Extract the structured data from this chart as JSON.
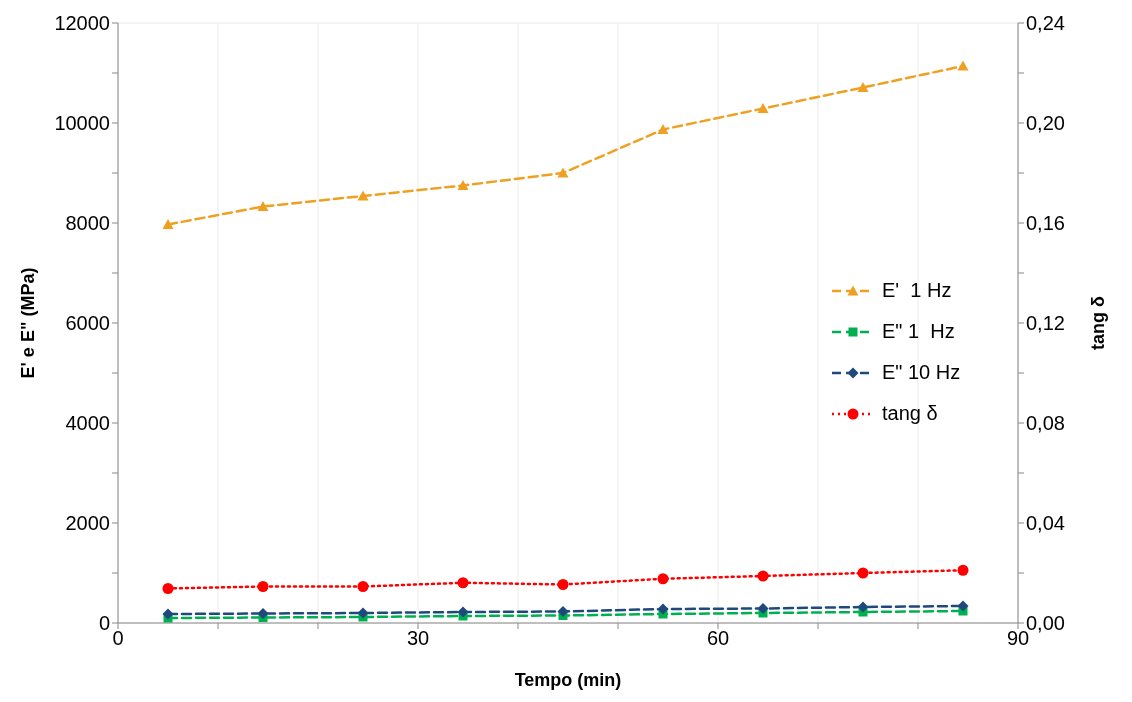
{
  "chart_data": {
    "type": "line",
    "xlabel": "Tempo  (min)",
    "ylabel": "E' e E\" (MPa)",
    "y2label": "tang δ",
    "x": [
      5,
      14.5,
      24.5,
      34.5,
      44.5,
      54.5,
      64.5,
      74.5,
      84.5
    ],
    "series": [
      {
        "name": "E'  1 Hz",
        "color": "#f0a020",
        "marker": "triangle",
        "line_style": "dashed",
        "values": [
          7970,
          8330,
          8540,
          8750,
          9000,
          9870,
          10290,
          10710,
          11140
        ]
      },
      {
        "name": "E\" 1  Hz",
        "color": "#00b050",
        "marker": "square",
        "line_style": "dashed",
        "values": [
          100,
          110,
          120,
          140,
          150,
          180,
          200,
          220,
          240
        ]
      },
      {
        "name": "E\" 10 Hz",
        "color": "#1f497d",
        "marker": "diamond",
        "line_style": "dashed",
        "values": [
          180,
          190,
          200,
          220,
          230,
          280,
          290,
          320,
          340
        ]
      },
      {
        "name": "tang δ",
        "color": "#ff0000",
        "marker": "circle",
        "line_style": "dotted",
        "axis": "y2",
        "values": [
          0.0138,
          0.0146,
          0.0146,
          0.0161,
          0.0154,
          0.0177,
          0.0188,
          0.02,
          0.0211
        ]
      }
    ],
    "xlim": [
      0,
      90
    ],
    "xticks": [
      0,
      {
        "value": 10,
        "label": null
      },
      {
        "value": 20,
        "label": null
      },
      30,
      {
        "value": 40,
        "label": null
      },
      {
        "value": 50,
        "label": null
      },
      60,
      {
        "value": 70,
        "label": null
      },
      {
        "value": 80,
        "label": null
      },
      90
    ],
    "ylim": [
      0,
      12000
    ],
    "yticks": [
      0,
      {
        "value": 1000,
        "label": null
      },
      2000,
      {
        "value": 3000,
        "label": null
      },
      4000,
      {
        "value": 5000,
        "label": null
      },
      6000,
      {
        "value": 7000,
        "label": null
      },
      8000,
      {
        "value": 9000,
        "label": null
      },
      10000,
      {
        "value": 11000,
        "label": null
      },
      12000
    ],
    "y2lim": [
      0,
      0.24
    ],
    "y2ticks": [
      {
        "value": 0,
        "label": "0,00"
      },
      {
        "value": 0.02,
        "label": null
      },
      {
        "value": 0.04,
        "label": "0,04"
      },
      {
        "value": 0.06,
        "label": null
      },
      {
        "value": 0.08,
        "label": "0,08"
      },
      {
        "value": 0.1,
        "label": null
      },
      {
        "value": 0.12,
        "label": "0,12"
      },
      {
        "value": 0.14,
        "label": null
      },
      {
        "value": 0.16,
        "label": "0,16"
      },
      {
        "value": 0.18,
        "label": null
      },
      {
        "value": 0.2,
        "label": "0,20"
      },
      {
        "value": 0.22,
        "label": null
      },
      {
        "value": 0.24,
        "label": "0,24"
      }
    ],
    "grid": true,
    "legend": "right"
  }
}
